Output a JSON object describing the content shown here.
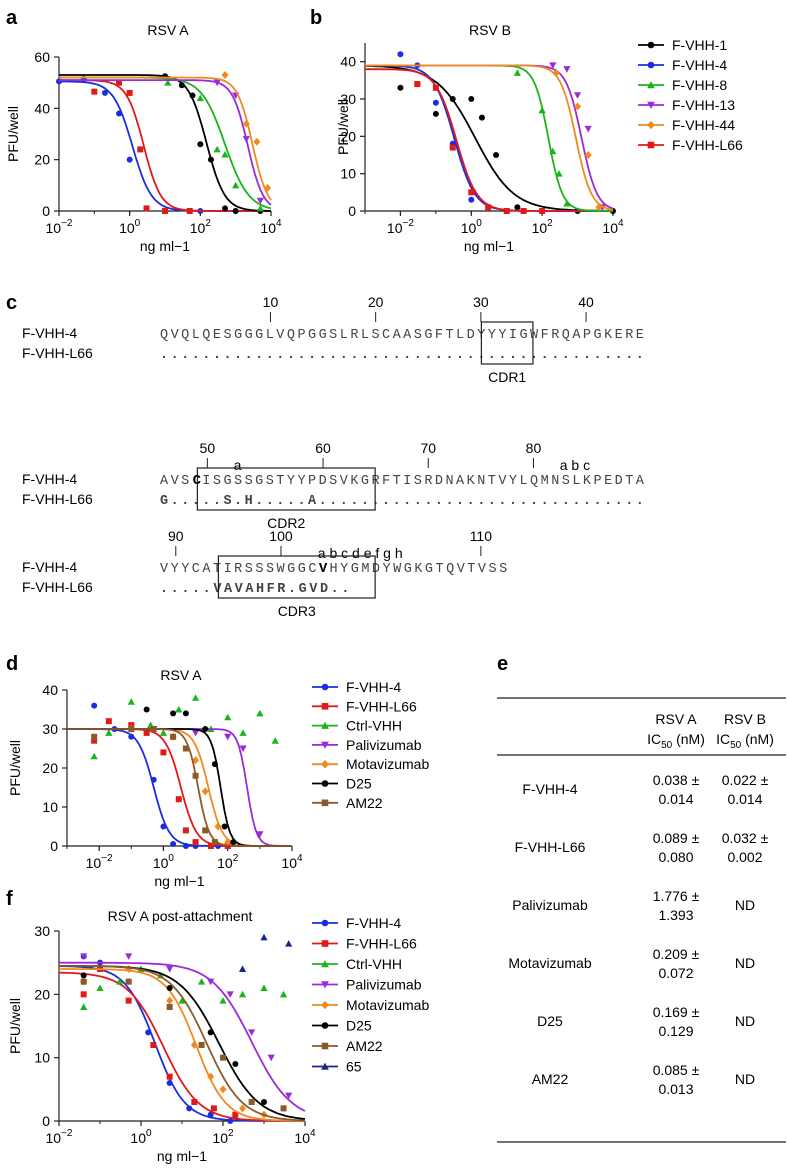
{
  "colors": {
    "F-VHH-1": "#000000",
    "F-VHH-4": "#1a2ee0",
    "F-VHH-8": "#19b519",
    "F-VHH-13": "#9b2bd6",
    "F-VHH-44": "#f08a1f",
    "F-VHH-L66": "#e0191b",
    "Ctrl-VHH": "#19b519",
    "Palivizumab": "#9b2bd6",
    "Motavizumab": "#f08a1f",
    "D25": "#000000",
    "AM22": "#8b5a2b",
    "65": "#152a80"
  },
  "markers": {
    "F-VHH-1": "circle",
    "F-VHH-4": "circle",
    "F-VHH-8": "triangle-up",
    "F-VHH-13": "triangle-down",
    "F-VHH-44": "diamond",
    "F-VHH-L66": "square",
    "Ctrl-VHH": "triangle-up",
    "Palivizumab": "triangle-down",
    "Motavizumab": "diamond",
    "D25": "circle",
    "AM22": "square",
    "65": "triangle-up"
  },
  "chart_data": [
    {
      "panel": "a",
      "type": "line",
      "title": "RSV A",
      "xlabel": "ng ml−1",
      "ylabel": "PFU/well",
      "xscale": "log",
      "xlim": [
        0.01,
        10000
      ],
      "ylim": [
        0,
        60
      ],
      "xticks": [
        {
          "v": 0.01,
          "b": "10",
          "e": "−2"
        },
        {
          "v": 1,
          "b": "10",
          "e": "0"
        },
        {
          "v": 100,
          "b": "10",
          "e": "2"
        },
        {
          "v": 10000,
          "b": "10",
          "e": "4"
        }
      ],
      "yticks": [
        0,
        20,
        40,
        60
      ],
      "series": [
        {
          "name": "F-VHH-4",
          "top": 50.5,
          "ic50": 1.2,
          "hill": 1.6,
          "x": [
            0.01,
            0.05,
            0.2,
            0.5,
            1,
            3,
            10,
            50,
            100,
            1000
          ],
          "y": [
            50.5,
            51.5,
            46,
            38,
            20,
            1,
            0,
            0,
            0,
            0
          ]
        },
        {
          "name": "F-VHH-L66",
          "top": 51,
          "ic50": 2.5,
          "hill": 1.8,
          "x": [
            0.1,
            0.5,
            1,
            2,
            3,
            10,
            50
          ],
          "y": [
            46.5,
            50,
            46,
            24,
            1,
            0,
            0
          ]
        },
        {
          "name": "F-VHH-1",
          "top": 53,
          "ic50": 150,
          "hill": 1.7,
          "x": [
            10,
            30,
            60,
            100,
            200,
            500,
            1000,
            5000
          ],
          "y": [
            52.5,
            49,
            45,
            26,
            20,
            1,
            0,
            0
          ]
        },
        {
          "name": "F-VHH-8",
          "top": 52,
          "ic50": 500,
          "hill": 1.3,
          "x": [
            12,
            100,
            300,
            500,
            1000,
            5000
          ],
          "y": [
            50,
            44,
            24,
            22,
            10,
            1
          ]
        },
        {
          "name": "F-VHH-13",
          "top": 51,
          "ic50": 2200,
          "hill": 2.0,
          "x": [
            300,
            1000,
            2000,
            5000
          ],
          "y": [
            50,
            45,
            28,
            4
          ]
        },
        {
          "name": "F-VHH-44",
          "top": 52,
          "ic50": 3000,
          "hill": 2.0,
          "x": [
            500,
            2000,
            4000,
            8000
          ],
          "y": [
            53,
            34,
            27,
            9
          ]
        }
      ]
    },
    {
      "panel": "b",
      "type": "line",
      "title": "RSV B",
      "xlabel": "ng ml−1",
      "ylabel": "PFU/well",
      "xscale": "log",
      "xlim": [
        0.001,
        10000
      ],
      "ylim": [
        0,
        45
      ],
      "xticks": [
        {
          "v": 0.01,
          "b": "10",
          "e": "−2"
        },
        {
          "v": 1,
          "b": "10",
          "e": "0"
        },
        {
          "v": 100,
          "b": "10",
          "e": "2"
        },
        {
          "v": 10000,
          "b": "10",
          "e": "4"
        }
      ],
      "yticks": [
        0,
        10,
        20,
        30,
        40
      ],
      "series": [
        {
          "name": "F-VHH-1",
          "top": 39,
          "ic50": 1.3,
          "hill": 0.8,
          "x": [
            0.01,
            0.03,
            0.1,
            0.3,
            1,
            2,
            5,
            20,
            100,
            1000,
            10000
          ],
          "y": [
            33,
            34,
            26,
            30,
            30,
            25,
            15,
            1,
            0,
            0,
            0
          ]
        },
        {
          "name": "F-VHH-4",
          "top": 39,
          "ic50": 0.33,
          "hill": 1.5,
          "x": [
            0.01,
            0.03,
            0.1,
            0.3,
            1,
            10,
            100
          ],
          "y": [
            42,
            39,
            29,
            18,
            3,
            0,
            0
          ]
        },
        {
          "name": "F-VHH-L66",
          "top": 38,
          "ic50": 0.38,
          "hill": 1.5,
          "x": [
            0.03,
            0.1,
            0.3,
            1,
            3,
            10,
            30,
            100
          ],
          "y": [
            34,
            33,
            17,
            5,
            1,
            0,
            0,
            0
          ]
        },
        {
          "name": "F-VHH-8",
          "top": 39,
          "ic50": 150,
          "hill": 2.2,
          "x": [
            20,
            100,
            200,
            300,
            500
          ],
          "y": [
            37,
            27,
            16,
            10,
            2
          ]
        },
        {
          "name": "F-VHH-13",
          "top": 39,
          "ic50": 1300,
          "hill": 2.0,
          "x": [
            200,
            500,
            1000,
            2000,
            5000
          ],
          "y": [
            39,
            38,
            31,
            22,
            1
          ]
        },
        {
          "name": "F-VHH-44",
          "top": 39,
          "ic50": 900,
          "hill": 2.0,
          "x": [
            250,
            1000,
            2000,
            4000
          ],
          "y": [
            37,
            28,
            15,
            1
          ]
        }
      ]
    },
    {
      "panel": "d",
      "type": "line",
      "title": "RSV A",
      "xlabel": "ng ml−1",
      "ylabel": "PFU/well",
      "xscale": "log",
      "xlim": [
        0.001,
        10000
      ],
      "ylim": [
        0,
        40
      ],
      "xticks": [
        {
          "v": 0.01,
          "b": "10",
          "e": "−2"
        },
        {
          "v": 1,
          "b": "10",
          "e": "0"
        },
        {
          "v": 100,
          "b": "10",
          "e": "2"
        },
        {
          "v": 10000,
          "b": "10",
          "e": "4"
        }
      ],
      "yticks": [
        0,
        10,
        20,
        30,
        40
      ],
      "series": [
        {
          "name": "F-VHH-4",
          "top": 30,
          "ic50": 0.5,
          "hill": 1.8,
          "x": [
            0.007,
            0.03,
            0.1,
            0.5,
            1,
            2,
            5,
            10,
            50,
            100
          ],
          "y": [
            36,
            30,
            28,
            17,
            5,
            0.5,
            0,
            0,
            0,
            0
          ]
        },
        {
          "name": "F-VHH-L66",
          "top": 30,
          "ic50": 3.5,
          "hill": 1.8,
          "x": [
            0.007,
            0.02,
            0.1,
            0.3,
            1,
            3,
            5,
            10,
            30,
            100
          ],
          "y": [
            27,
            32,
            31,
            29,
            24,
            12,
            4,
            1,
            0,
            0
          ]
        },
        {
          "name": "Ctrl-VHH",
          "top": null,
          "ic50": null,
          "hill": null,
          "x": [
            0.007,
            0.02,
            0.1,
            0.4,
            1,
            3,
            10,
            30,
            100,
            300,
            1000,
            3000
          ],
          "y": [
            23,
            29,
            37,
            31,
            29,
            35,
            38,
            30,
            33,
            29,
            34,
            27
          ]
        },
        {
          "name": "Palivizumab",
          "top": 30,
          "ic50": 400,
          "hill": 3.0,
          "x": [
            0.5,
            10,
            100,
            300,
            1000
          ],
          "y": [
            30,
            29,
            28,
            25,
            3
          ]
        },
        {
          "name": "Motavizumab",
          "top": 30,
          "ic50": 25,
          "hill": 2.0,
          "x": [
            0.1,
            2,
            10,
            20,
            50,
            100
          ],
          "y": [
            30,
            28,
            22,
            14,
            5,
            1
          ]
        },
        {
          "name": "D25",
          "top": 30,
          "ic50": 60,
          "hill": 3.0,
          "x": [
            0.3,
            2,
            5,
            20,
            40,
            80,
            150
          ],
          "y": [
            35,
            34,
            34,
            30,
            21,
            5,
            1
          ]
        },
        {
          "name": "AM22",
          "top": 30,
          "ic50": 12,
          "hill": 2.5,
          "x": [
            0.007,
            0.1,
            0.5,
            2,
            5,
            10,
            20,
            40
          ],
          "y": [
            28,
            30,
            30,
            28,
            25,
            18,
            4,
            1
          ]
        }
      ]
    },
    {
      "panel": "f",
      "type": "line",
      "title": "RSV A post-attachment",
      "xlabel": "ng ml−1",
      "ylabel": "PFU/well",
      "xscale": "log",
      "xlim": [
        0.01,
        10000
      ],
      "ylim": [
        0,
        30
      ],
      "xticks": [
        {
          "v": 0.01,
          "b": "10",
          "e": "−2"
        },
        {
          "v": 1,
          "b": "10",
          "e": "0"
        },
        {
          "v": 100,
          "b": "10",
          "e": "2"
        },
        {
          "v": 10000,
          "b": "10",
          "e": "4"
        }
      ],
      "yticks": [
        0,
        10,
        20,
        30
      ],
      "series": [
        {
          "name": "F-VHH-4",
          "top": 24.5,
          "ic50": 2.2,
          "hill": 1.2,
          "x": [
            0.04,
            0.1,
            0.5,
            1.5,
            5,
            15,
            50,
            150
          ],
          "y": [
            26,
            25,
            22,
            14,
            6,
            2,
            1,
            0
          ]
        },
        {
          "name": "F-VHH-L66",
          "top": 23.5,
          "ic50": 3.5,
          "hill": 1.0,
          "x": [
            0.04,
            0.1,
            0.5,
            2,
            5,
            20,
            60,
            200
          ],
          "y": [
            20,
            24,
            19,
            12,
            7,
            3,
            2,
            1
          ]
        },
        {
          "name": "Ctrl-VHH",
          "top": null,
          "ic50": null,
          "hill": null,
          "x": [
            0.04,
            0.1,
            0.3,
            1,
            3,
            10,
            30,
            100,
            300,
            1000,
            3000
          ],
          "y": [
            18,
            21,
            22,
            24,
            23,
            19,
            22,
            19,
            20,
            21,
            20
          ]
        },
        {
          "name": "Palivizumab",
          "top": 25,
          "ic50": 500,
          "hill": 0.9,
          "x": [
            0.04,
            0.5,
            5,
            50,
            150,
            500,
            1500,
            4000
          ],
          "y": [
            26,
            26,
            24,
            22,
            20,
            14,
            10,
            4
          ]
        },
        {
          "name": "Motavizumab",
          "top": 24,
          "ic50": 22,
          "hill": 1.2,
          "x": [
            0.04,
            0.5,
            5,
            20,
            50,
            100,
            300,
            1000
          ],
          "y": [
            22,
            24,
            19,
            12,
            7,
            5,
            2,
            1
          ]
        },
        {
          "name": "D25",
          "top": 24.5,
          "ic50": 80,
          "hill": 0.9,
          "x": [
            0.04,
            0.5,
            5,
            50,
            200,
            1000,
            3000
          ],
          "y": [
            23,
            22,
            21,
            14,
            9,
            3,
            2
          ]
        },
        {
          "name": "AM22",
          "top": 24.5,
          "ic50": 40,
          "hill": 1.0,
          "x": [
            0.04,
            0.5,
            5,
            30,
            100,
            500,
            3000
          ],
          "y": [
            22,
            22,
            18,
            12,
            10,
            3,
            2
          ]
        },
        {
          "name": "65",
          "top": null,
          "ic50": null,
          "hill": null,
          "x": [
            300,
            1000,
            4000
          ],
          "y": [
            24,
            29,
            28
          ]
        }
      ]
    }
  ],
  "legend_top": [
    "F-VHH-1",
    "F-VHH-4",
    "F-VHH-8",
    "F-VHH-13",
    "F-VHH-44",
    "F-VHH-L66"
  ],
  "legend_d": [
    "F-VHH-4",
    "F-VHH-L66",
    "Ctrl-VHH",
    "Palivizumab",
    "Motavizumab",
    "D25",
    "AM22"
  ],
  "legend_f": [
    "F-VHH-4",
    "F-VHH-L66",
    "Ctrl-VHH",
    "Palivizumab",
    "Motavizumab",
    "D25",
    "AM22",
    "65"
  ],
  "panels": {
    "a": "a",
    "b": "b",
    "c": "c",
    "d": "d",
    "e": "e",
    "f": "f"
  },
  "sequence": {
    "rows": [
      {
        "ticks": [
          {
            "pos": 10,
            "label": "10"
          },
          {
            "pos": 20,
            "label": "20"
          },
          {
            "pos": 30,
            "label": "30"
          },
          {
            "pos": 40,
            "label": "40"
          }
        ],
        "ins": [],
        "ref": "QVQLQESGGGLVQPGGSLRLSCAASGFTLDYYYIGWFRQAPGKERE",
        "var": "..............................................",
        "box": [
          31,
          35
        ],
        "boxlabel": "CDR1",
        "bold": []
      },
      {
        "ticks": [
          {
            "pos": 4,
            "label": "50"
          },
          {
            "pos": 15,
            "label": "60"
          },
          {
            "pos": 25,
            "label": "70"
          },
          {
            "pos": 35,
            "label": "80"
          }
        ],
        "ins": [
          {
            "pos": 7,
            "label": "a"
          },
          {
            "pos": 38,
            "label": "a b c"
          }
        ],
        "ref": "AVSCISGSSGSTYYPDSVKGRFTISRDNAKNTVYLQMNSLKPEDTA",
        "var": "G.....S.H.....A...............................",
        "box": [
          4,
          20
        ],
        "boxlabel": "CDR2",
        "bold": [
          3
        ]
      },
      {
        "ticks": [
          {
            "pos": 1,
            "label": "90"
          },
          {
            "pos": 11,
            "label": "100"
          },
          {
            "pos": 30,
            "label": "110"
          }
        ],
        "ins": [
          {
            "pos": 15,
            "label": "a b c d e f g h"
          }
        ],
        "ref": "VYYCATIRSSSWGGCVHYGMDYWGKGTQVTVSS",
        "var": ".....VAVAHFR.GVD..",
        "box": [
          6,
          20
        ],
        "boxlabel": "CDR3",
        "bold": [
          15
        ]
      }
    ],
    "names": [
      "F-VHH-4",
      "F-VHH-L66"
    ]
  },
  "table": {
    "headers": [
      {
        "line1": "RSV A",
        "base": "IC",
        "sub": "50",
        "unit": " (nM)"
      },
      {
        "line1": "RSV B",
        "base": "IC",
        "sub": "50",
        "unit": " (nM)"
      }
    ],
    "rows": [
      {
        "name": "F-VHH-4",
        "a": [
          "0.038 ±",
          "0.014"
        ],
        "b": [
          "0.022 ±",
          "0.014"
        ]
      },
      {
        "name": "F-VHH-L66",
        "a": [
          "0.089 ±",
          "0.080"
        ],
        "b": [
          "0.032 ±",
          "0.002"
        ]
      },
      {
        "name": "Palivizumab",
        "a": [
          "1.776 ±",
          "1.393"
        ],
        "b": [
          "ND"
        ]
      },
      {
        "name": "Motavizumab",
        "a": [
          "0.209 ±",
          "0.072"
        ],
        "b": [
          "ND"
        ]
      },
      {
        "name": "D25",
        "a": [
          "0.169 ±",
          "0.129"
        ],
        "b": [
          "ND"
        ]
      },
      {
        "name": "AM22",
        "a": [
          "0.085 ±",
          "0.013"
        ],
        "b": [
          "ND"
        ]
      }
    ]
  }
}
